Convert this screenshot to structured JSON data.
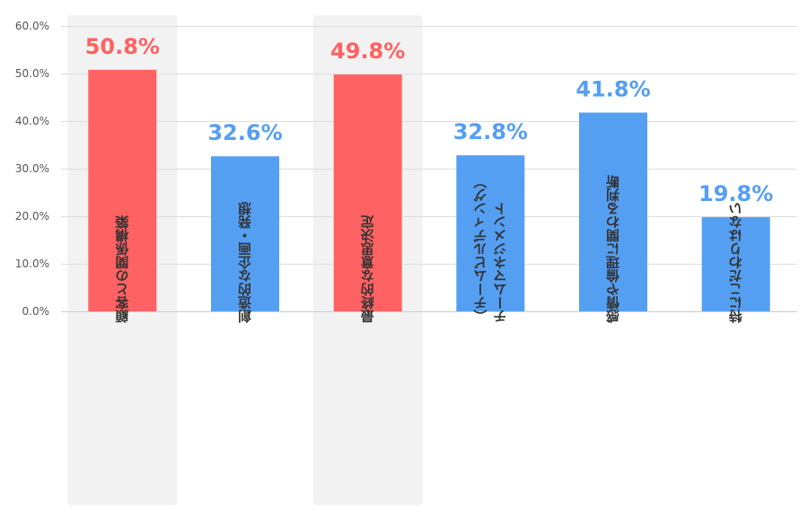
{
  "chart_data": {
    "type": "bar",
    "title": "",
    "xlabel": "",
    "ylabel": "",
    "ylim": [
      0,
      60
    ],
    "grid": true,
    "y_ticks": [
      "0.0%",
      "10.0%",
      "20.0%",
      "30.0%",
      "40.0%",
      "50.0%",
      "60.0%"
    ],
    "categories": [
      [
        "顧客との関係構築"
      ],
      [
        "創造的な企画・発想"
      ],
      [
        "最終的な意思決定"
      ],
      [
        "チームマネジメント",
        "（チームビルディング）"
      ],
      [
        "感情や倫理に関わる判断"
      ],
      [
        "特にこだわりはない"
      ]
    ],
    "values": [
      50.8,
      32.6,
      49.8,
      32.8,
      41.8,
      19.8
    ],
    "data_labels": [
      "50.8%",
      "32.6%",
      "49.8%",
      "32.8%",
      "41.8%",
      "19.8%"
    ],
    "highlighted": [
      true,
      false,
      true,
      false,
      false,
      false
    ],
    "colors": {
      "highlight": "#ff6262",
      "normal": "#559ff3",
      "highlight_band": "#f2f2f2",
      "grid": "#dddddd"
    }
  }
}
